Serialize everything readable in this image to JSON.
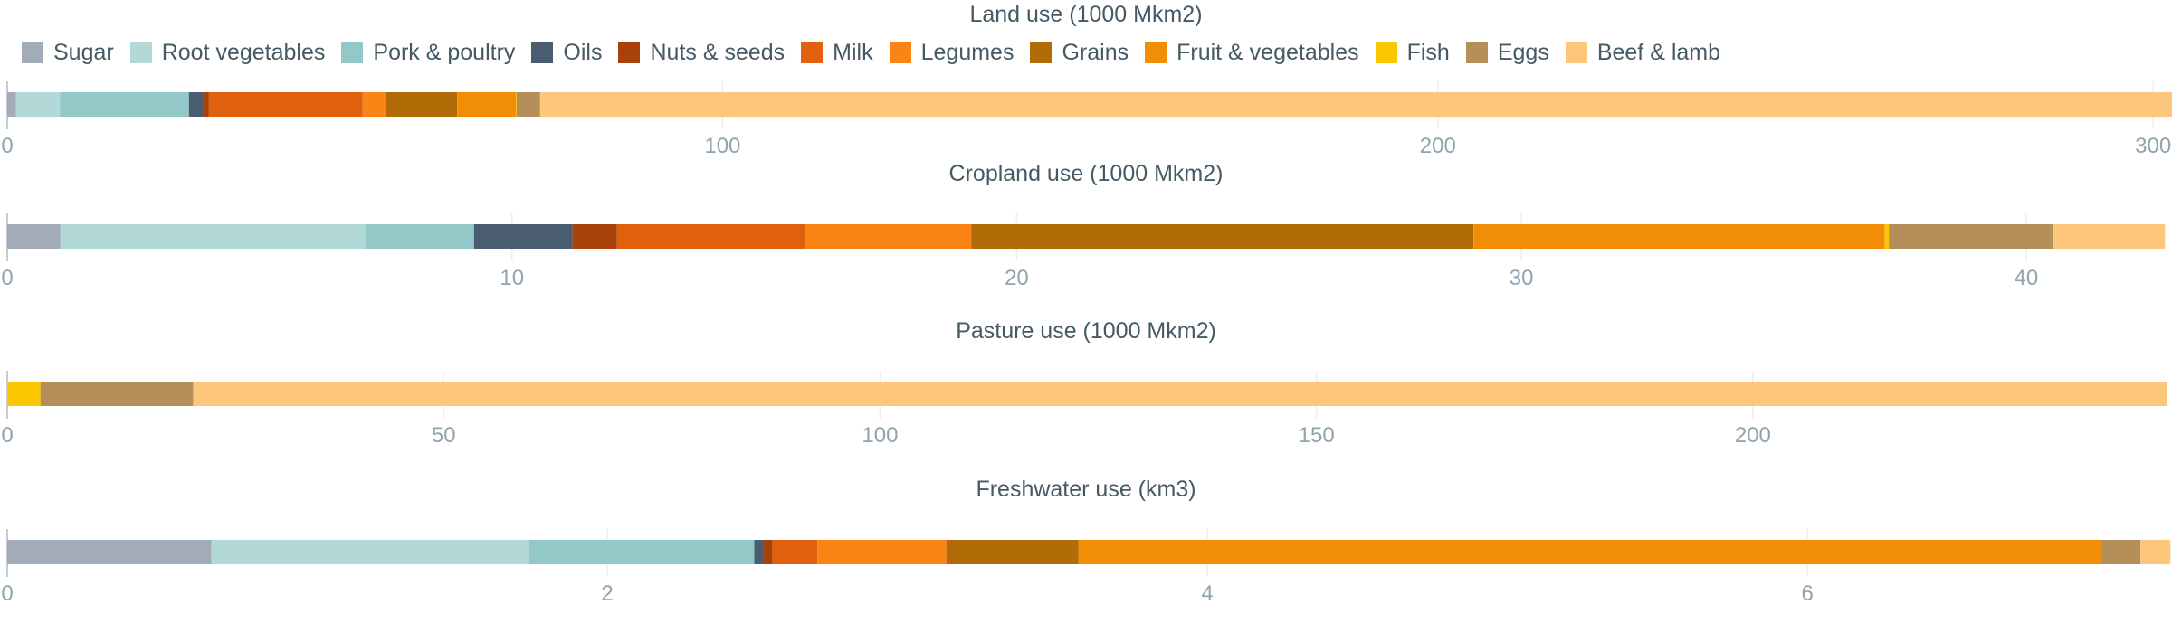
{
  "chart_data": {
    "type": "bar",
    "orientation": "horizontal-stacked",
    "title": "Land use (1000 Mkm2)",
    "legend": {
      "placement": "top-left"
    },
    "categories": [
      "Sugar",
      "Root vegetables",
      "Pork & poultry",
      "Oils",
      "Nuts & seeds",
      "Milk",
      "Legumes",
      "Grains",
      "Fruit & vegetables",
      "Fish",
      "Eggs",
      "Beef & lamb"
    ],
    "colors": [
      "#a2acb8",
      "#b2d8d8",
      "#93c8c8",
      "#4a5d70",
      "#a8420a",
      "#e0600e",
      "#fa8416",
      "#b16c07",
      "#f28e06",
      "#fbc700",
      "#b48f5a",
      "#fdc77b"
    ],
    "panels": [
      {
        "title": "Land use (1000 Mkm2)",
        "xlim": [
          0,
          302
        ],
        "ticks": [
          0,
          100,
          200,
          300
        ],
        "values": [
          1.2,
          6.2,
          18.0,
          2.0,
          0.8,
          21.5,
          3.2,
          10.0,
          8.2,
          0.1,
          3.3,
          228.5
        ]
      },
      {
        "title": "Cropland use (1000 Mkm2)",
        "xlim": [
          0,
          42.8
        ],
        "ticks": [
          0,
          10,
          20,
          30,
          40
        ],
        "values": [
          1.05,
          6.05,
          2.15,
          1.95,
          0.88,
          3.72,
          3.3,
          9.95,
          8.15,
          0.08,
          3.25,
          2.22
        ]
      },
      {
        "title": "Pasture use (1000 Mkm2)",
        "xlim": [
          0,
          247.5
        ],
        "ticks": [
          0,
          50,
          100,
          150,
          200
        ],
        "values": [
          0,
          0,
          0,
          0,
          0,
          0,
          0,
          0,
          0,
          3.8,
          17.5,
          226.2
        ]
      },
      {
        "title": "Freshwater use (km3)",
        "xlim": [
          0,
          7.2
        ],
        "ticks": [
          0,
          2,
          4,
          6
        ],
        "values": [
          0.68,
          1.06,
          0.75,
          0.03,
          0.03,
          0.15,
          0.43,
          0.44,
          3.41,
          0,
          0.13,
          0.1
        ]
      }
    ]
  }
}
